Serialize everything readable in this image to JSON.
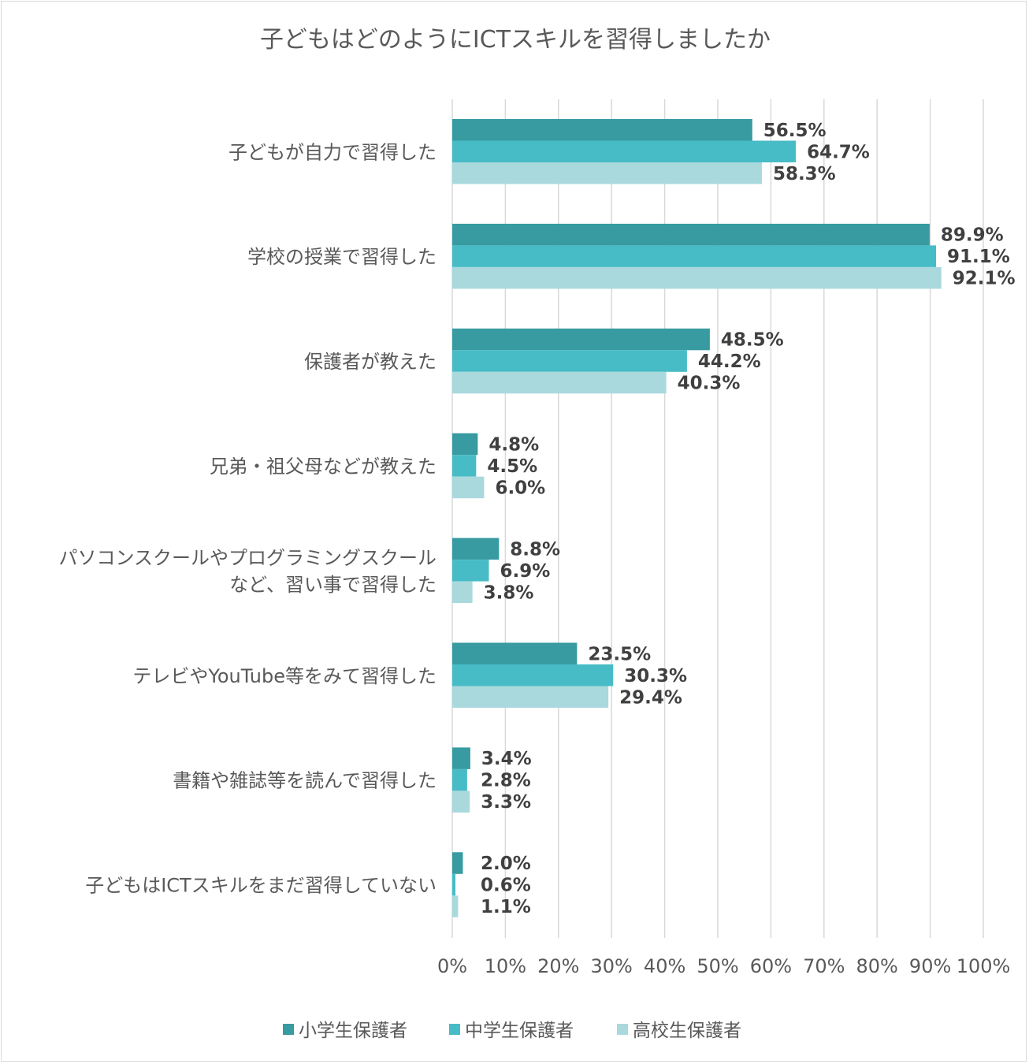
{
  "chart_data": {
    "type": "bar",
    "orientation": "horizontal",
    "title": "子どもはどのようにICTスキルを習得しましたか",
    "categories": [
      [
        "子どもが自力で習得した"
      ],
      [
        "学校の授業で習得した"
      ],
      [
        "保護者が教えた"
      ],
      [
        "兄弟・祖父母などが教えた"
      ],
      [
        "パソコンスクールやプログラミングスクール",
        "など、習い事で習得した"
      ],
      [
        "テレビやYouTube等をみて習得した"
      ],
      [
        "書籍や雑誌等を読んで習得した"
      ],
      [
        "子どもはICTスキルをまだ習得していない"
      ]
    ],
    "series": [
      {
        "name": "小学生保護者",
        "color": "#379ba1",
        "values": [
          56.5,
          89.9,
          48.5,
          4.8,
          8.8,
          23.5,
          3.4,
          2.0
        ],
        "labels": [
          "56.5%",
          "89.9%",
          "48.5%",
          "4.8%",
          "8.8%",
          "23.5%",
          "3.4%",
          "2.0%"
        ]
      },
      {
        "name": "中学生保護者",
        "color": "#47bcc6",
        "values": [
          64.7,
          91.1,
          44.2,
          4.5,
          6.9,
          30.3,
          2.8,
          0.6
        ],
        "labels": [
          "64.7%",
          "91.1%",
          "44.2%",
          "4.5%",
          "6.9%",
          "30.3%",
          "2.8%",
          "0.6%"
        ]
      },
      {
        "name": "高校生保護者",
        "color": "#a9d9dd",
        "values": [
          58.3,
          92.1,
          40.3,
          6.0,
          3.8,
          29.4,
          3.3,
          1.1
        ],
        "labels": [
          "58.3%",
          "92.1%",
          "40.3%",
          "6.0%",
          "3.8%",
          "29.4%",
          "3.3%",
          "1.1%"
        ]
      }
    ],
    "xlim": [
      0,
      100
    ],
    "xticks": [
      "0%",
      "10%",
      "20%",
      "30%",
      "40%",
      "50%",
      "60%",
      "70%",
      "80%",
      "90%",
      "100%"
    ],
    "grid": true,
    "legend_position": "bottom"
  }
}
